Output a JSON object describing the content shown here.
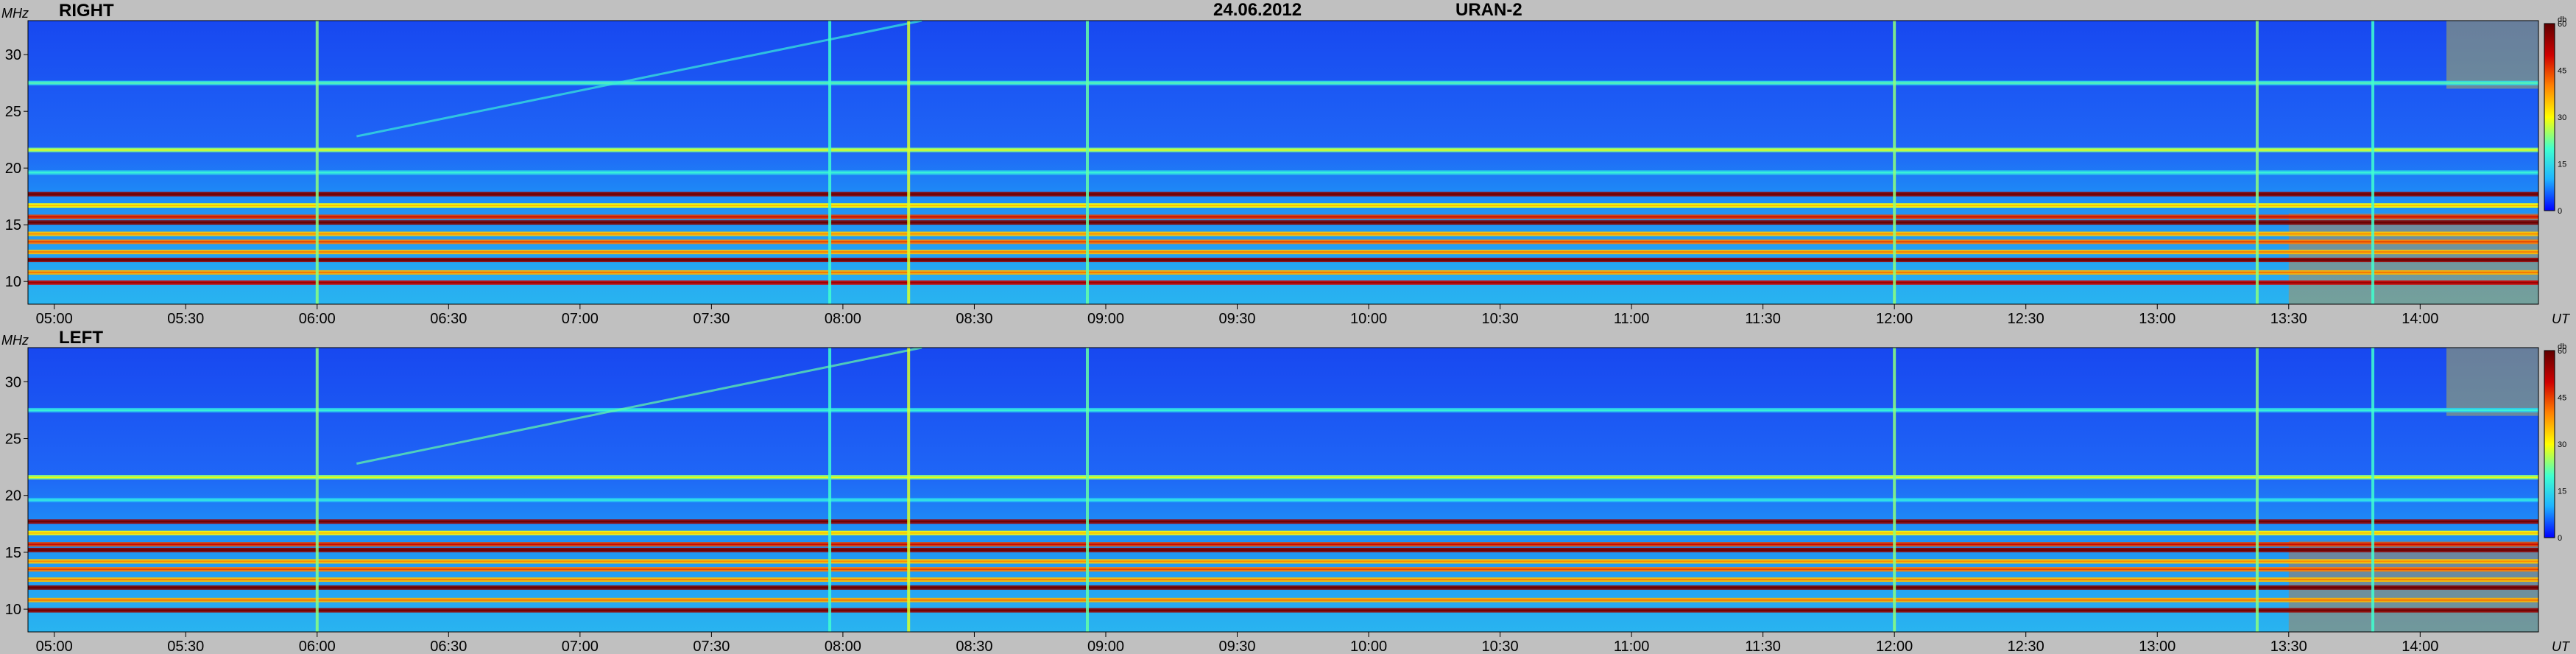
{
  "header": {
    "date": "24.06.2012",
    "instrument": "URAN-2"
  },
  "colors": {
    "background": "#c0c0c0",
    "base_blue": "#1f5cf0",
    "colormap": [
      "#0000ff",
      "#1fb4ff",
      "#3fffd0",
      "#ffff00",
      "#ff7f00",
      "#d00000",
      "#600000"
    ]
  },
  "chart_data": [
    {
      "type": "heatmap",
      "title": "RIGHT",
      "ylabel": "MHz",
      "xlabel": "UT",
      "x_ticks": [
        "05:00",
        "05:30",
        "06:00",
        "06:30",
        "07:00",
        "07:30",
        "08:00",
        "08:30",
        "09:00",
        "09:30",
        "10:00",
        "10:30",
        "11:00",
        "11:30",
        "12:00",
        "12:30",
        "13:00",
        "13:30",
        "14:00"
      ],
      "x_tick_hours": [
        5.0,
        5.5,
        6.0,
        6.5,
        7.0,
        7.5,
        8.0,
        8.5,
        9.0,
        9.5,
        10.0,
        10.5,
        11.0,
        11.5,
        12.0,
        12.5,
        13.0,
        13.5,
        14.0
      ],
      "xlim_hours": [
        4.9,
        14.45
      ],
      "y_ticks": [
        10,
        15,
        20,
        25,
        30
      ],
      "ylim": [
        8,
        33
      ],
      "colorbar": {
        "label": "db",
        "ticks": [
          0,
          15,
          30,
          45,
          60
        ],
        "range": [
          0,
          60
        ]
      },
      "horizontal_bands_mhz": [
        {
          "freq": 9.9,
          "db": 50
        },
        {
          "freq": 10.8,
          "db": 36
        },
        {
          "freq": 11.9,
          "db": 55
        },
        {
          "freq": 12.6,
          "db": 35
        },
        {
          "freq": 13.5,
          "db": 40
        },
        {
          "freq": 14.2,
          "db": 34
        },
        {
          "freq": 15.2,
          "db": 57
        },
        {
          "freq": 15.7,
          "db": 45
        },
        {
          "freq": 16.7,
          "db": 30
        },
        {
          "freq": 17.7,
          "db": 56
        },
        {
          "freq": 19.6,
          "db": 14
        },
        {
          "freq": 21.6,
          "db": 24
        },
        {
          "freq": 27.5,
          "db": 16
        }
      ],
      "vertical_bursts_ut": [
        {
          "time": 6.0,
          "db": 24
        },
        {
          "time": 7.95,
          "db": 20
        },
        {
          "time": 8.25,
          "db": 28
        },
        {
          "time": 8.93,
          "db": 22
        },
        {
          "time": 12.0,
          "db": 24
        },
        {
          "time": 13.38,
          "db": 24
        },
        {
          "time": 13.82,
          "db": 20
        }
      ],
      "drift_features": [
        {
          "t_start": 6.15,
          "t_end": 8.3,
          "f_start": 22.8,
          "f_end": 33.0,
          "db": 18
        }
      ],
      "corner_enhancements": [
        {
          "t_start": 14.1,
          "t_end": 14.45,
          "f_low": 27.0,
          "f_high": 33.0,
          "db": 32
        },
        {
          "t_start": 13.5,
          "t_end": 14.45,
          "f_low": 8.0,
          "f_high": 16.0,
          "db": 40
        }
      ]
    },
    {
      "type": "heatmap",
      "title": "LEFT",
      "ylabel": "MHz",
      "xlabel": "UT",
      "x_ticks": [
        "05:00",
        "05:30",
        "06:00",
        "06:30",
        "07:00",
        "07:30",
        "08:00",
        "08:30",
        "09:00",
        "09:30",
        "10:00",
        "10:30",
        "11:00",
        "11:30",
        "12:00",
        "12:30",
        "13:00",
        "13:30",
        "14:00"
      ],
      "x_tick_hours": [
        5.0,
        5.5,
        6.0,
        6.5,
        7.0,
        7.5,
        8.0,
        8.5,
        9.0,
        9.5,
        10.0,
        10.5,
        11.0,
        11.5,
        12.0,
        12.5,
        13.0,
        13.5,
        14.0
      ],
      "xlim_hours": [
        4.9,
        14.45
      ],
      "y_ticks": [
        10,
        15,
        20,
        25,
        30
      ],
      "ylim": [
        8,
        33
      ],
      "colorbar": {
        "label": "db",
        "ticks": [
          0,
          15,
          30,
          45,
          60
        ],
        "range": [
          0,
          60
        ]
      },
      "horizontal_bands_mhz": [
        {
          "freq": 9.9,
          "db": 55
        },
        {
          "freq": 10.8,
          "db": 36
        },
        {
          "freq": 11.9,
          "db": 57
        },
        {
          "freq": 12.6,
          "db": 35
        },
        {
          "freq": 13.5,
          "db": 40
        },
        {
          "freq": 14.2,
          "db": 34
        },
        {
          "freq": 15.2,
          "db": 56
        },
        {
          "freq": 15.7,
          "db": 45
        },
        {
          "freq": 16.7,
          "db": 30
        },
        {
          "freq": 17.7,
          "db": 55
        },
        {
          "freq": 19.6,
          "db": 12
        },
        {
          "freq": 21.6,
          "db": 24
        },
        {
          "freq": 27.5,
          "db": 14
        }
      ],
      "vertical_bursts_ut": [
        {
          "time": 6.0,
          "db": 24
        },
        {
          "time": 7.95,
          "db": 20
        },
        {
          "time": 8.25,
          "db": 28
        },
        {
          "time": 8.93,
          "db": 22
        },
        {
          "time": 12.0,
          "db": 24
        },
        {
          "time": 13.38,
          "db": 24
        },
        {
          "time": 13.82,
          "db": 20
        }
      ],
      "drift_features": [
        {
          "t_start": 6.15,
          "t_end": 8.3,
          "f_start": 22.8,
          "f_end": 33.0,
          "db": 22
        }
      ],
      "corner_enhancements": [
        {
          "t_start": 14.1,
          "t_end": 14.45,
          "f_low": 27.0,
          "f_high": 33.0,
          "db": 32
        },
        {
          "t_start": 13.5,
          "t_end": 14.45,
          "f_low": 8.0,
          "f_high": 16.0,
          "db": 42
        }
      ]
    }
  ]
}
